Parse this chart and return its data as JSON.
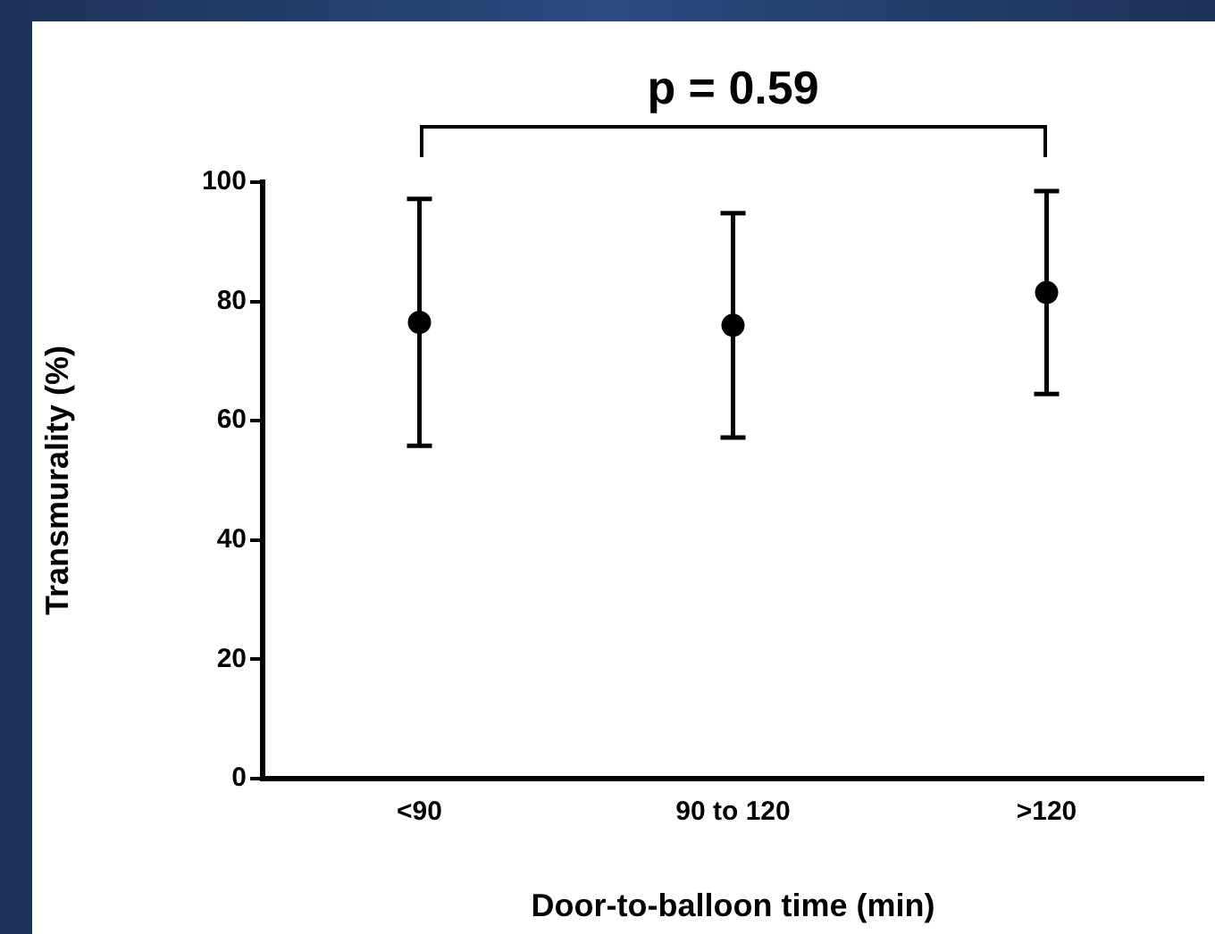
{
  "chart_data": {
    "type": "scatter",
    "xlabel": "Door-to-balloon time (min)",
    "ylabel": "Transmurality (%)",
    "categories": [
      "<90",
      "90 to 120",
      ">120"
    ],
    "values": [
      76.5,
      76,
      81.5
    ],
    "errors": [
      20.7,
      18.8,
      17
    ],
    "color": "#000000",
    "marker": "circle",
    "ylim": [
      0,
      100
    ],
    "yticks": [
      0,
      20,
      40,
      60,
      80,
      100
    ],
    "grid": false,
    "legend": false,
    "annotations": [
      "p = 0.59"
    ]
  }
}
